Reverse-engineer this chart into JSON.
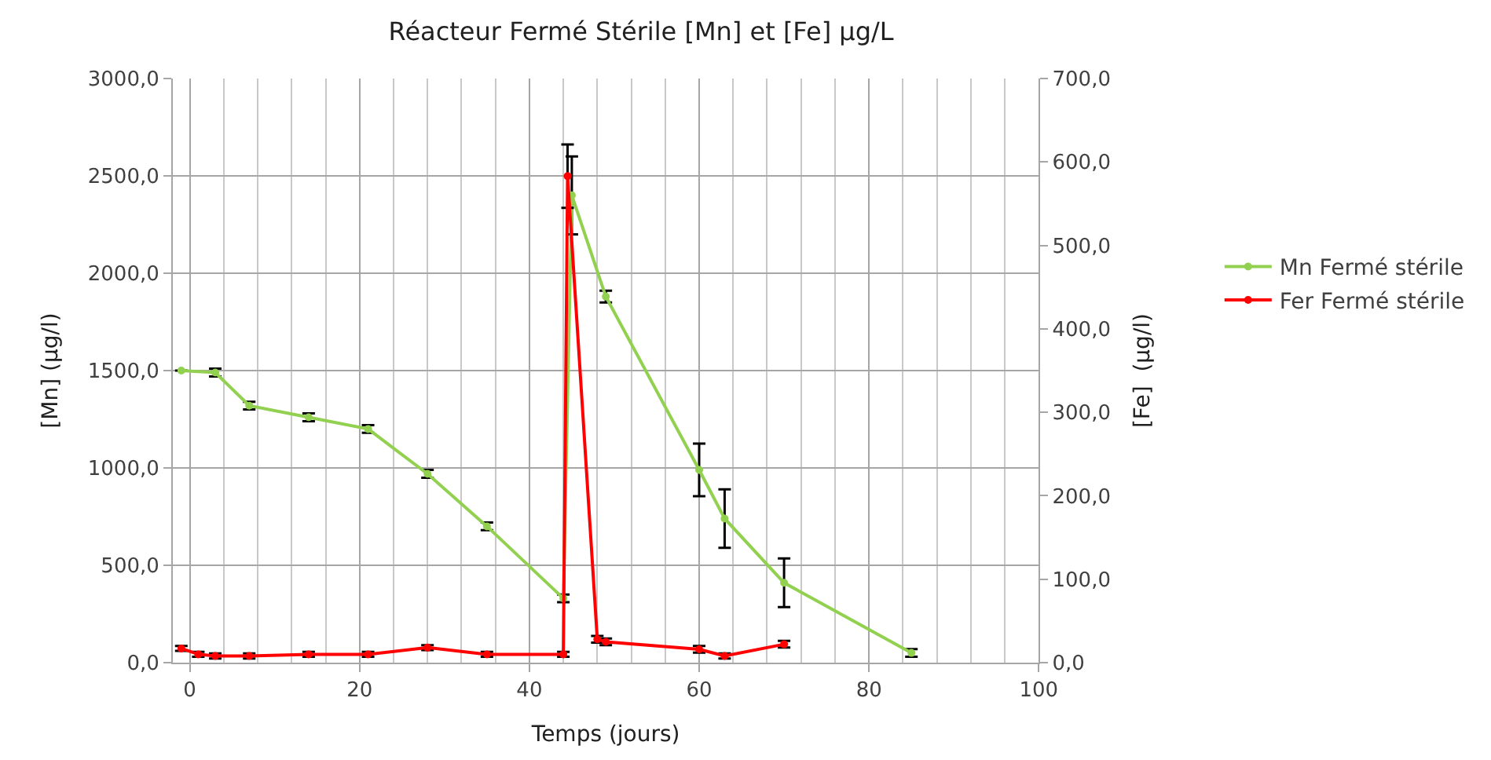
{
  "chart_data": {
    "type": "line",
    "title": "Réacteur Fermé Stérile [Mn] et [Fe] µg/L",
    "xlabel": "Temps (jours)",
    "ylabel": "[Mn] (µg/l)",
    "y2label": "[Fe]  (µg/l)",
    "xlim": [
      -2,
      100
    ],
    "xticks": [
      0,
      20,
      40,
      60,
      80,
      100
    ],
    "ylim": [
      0,
      3000
    ],
    "yticks": [
      {
        "value": 0,
        "label": "0,0"
      },
      {
        "value": 500,
        "label": "500,0"
      },
      {
        "value": 1000,
        "label": "1000,0"
      },
      {
        "value": 1500,
        "label": "1500,0"
      },
      {
        "value": 2000,
        "label": "2000,0"
      },
      {
        "value": 2500,
        "label": "2500,0"
      },
      {
        "value": 3000,
        "label": "3000,0"
      }
    ],
    "y2lim": [
      0,
      700
    ],
    "y2ticks": [
      {
        "value": 0,
        "label": "0,0"
      },
      {
        "value": 100,
        "label": "100,0"
      },
      {
        "value": 200,
        "label": "200,0"
      },
      {
        "value": 300,
        "label": "300,0"
      },
      {
        "value": 400,
        "label": "400,0"
      },
      {
        "value": 500,
        "label": "500,0"
      },
      {
        "value": 600,
        "label": "600,0"
      },
      {
        "value": 700,
        "label": "700,0"
      }
    ],
    "grid": true,
    "legend": "right",
    "marker": "circle",
    "line_style": "solid",
    "series": [
      {
        "name": "Mn Fermé stérile",
        "color": "#92d050",
        "x": [
          -1,
          3,
          7,
          14,
          21,
          28,
          35,
          44,
          45,
          49,
          60,
          63,
          70,
          85
        ],
        "values": [
          1500,
          1490,
          1320,
          1260,
          1200,
          970,
          700,
          330,
          2400,
          1880,
          990,
          740,
          410,
          50
        ],
        "errors": [
          null,
          20,
          20,
          20,
          20,
          20,
          20,
          20,
          200,
          30,
          135,
          150,
          125,
          20
        ]
      },
      {
        "name": "Fer Fermé stérile",
        "color": "#ff0000",
        "axis": "y2",
        "x": [
          -1,
          1,
          3,
          7,
          14,
          21,
          28,
          35,
          44,
          44.5,
          48,
          49,
          60,
          63,
          70
        ],
        "values": [
          17,
          10,
          8,
          8,
          10,
          10,
          18,
          10,
          10,
          583,
          28,
          25,
          16,
          8,
          22
        ],
        "errors": [
          3,
          3,
          3,
          3,
          3,
          3,
          3,
          3,
          3,
          38,
          4,
          4,
          4,
          3,
          4
        ]
      }
    ]
  }
}
